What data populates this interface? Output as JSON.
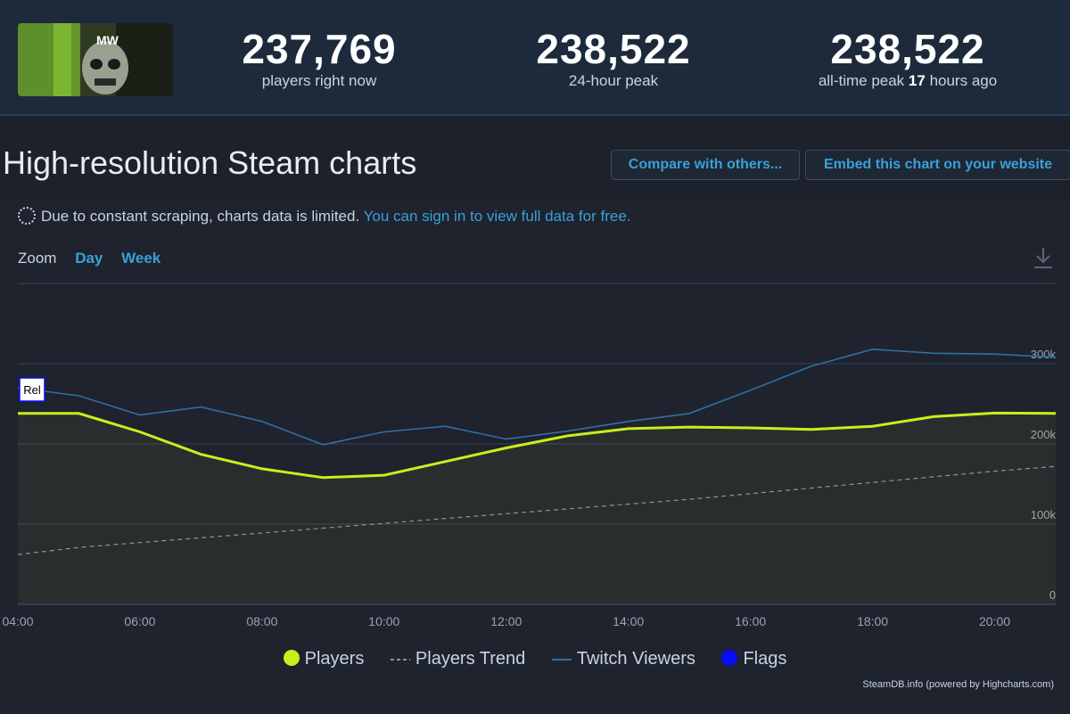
{
  "stats": [
    {
      "value": "237,769",
      "label": "players right now"
    },
    {
      "value": "238,522",
      "label": "24-hour peak"
    },
    {
      "value": "238,522",
      "label_pre": "all-time peak ",
      "label_bold": "17",
      "label_post": " hours ago"
    }
  ],
  "cover": {
    "art_text": "MW"
  },
  "page_title": "High-resolution Steam charts",
  "buttons": {
    "compare": "Compare with others...",
    "embed": "Embed this chart on your website"
  },
  "notice": {
    "text": "Due to constant scraping, charts data is limited.",
    "link": "You can sign in to view full data for free."
  },
  "zoom": {
    "label": "Zoom",
    "day": "Day",
    "week": "Week"
  },
  "icons": {
    "download": "download-icon",
    "spinner": "loading-icon"
  },
  "colors": {
    "players": "#c7ef1c",
    "trend": "#8a939e",
    "twitch": "#2f6fa3",
    "flags": "#0a0aff"
  },
  "legend": {
    "players": "Players",
    "trend": "Players Trend",
    "twitch": "Twitch Viewers",
    "flags": "Flags"
  },
  "credit": "SteamDB.info (powered by Highcharts.com)",
  "chart_data": {
    "type": "line",
    "x": [
      4,
      5,
      6,
      7,
      8,
      9,
      10,
      11,
      12,
      13,
      14,
      15,
      16,
      17,
      18,
      19,
      20,
      21
    ],
    "x_tick_labels": [
      "04:00",
      "06:00",
      "08:00",
      "10:00",
      "12:00",
      "14:00",
      "16:00",
      "18:00",
      "20:00"
    ],
    "x_ticks": [
      4,
      6,
      8,
      10,
      12,
      14,
      16,
      18,
      20
    ],
    "y_tick_labels": [
      "0",
      "100k",
      "200k",
      "300k"
    ],
    "y_ticks": [
      0,
      100000,
      200000,
      300000
    ],
    "ylim": [
      0,
      400000
    ],
    "xlim": [
      4,
      21
    ],
    "grid": true,
    "legend_position": "bottom",
    "flag_label": "Rel",
    "series": [
      {
        "name": "Players",
        "key": "players",
        "values": [
          238000,
          238000,
          215000,
          187000,
          169000,
          158000,
          161000,
          178000,
          195000,
          210000,
          219000,
          221000,
          220000,
          218000,
          222000,
          234000,
          238500,
          238000
        ]
      },
      {
        "name": "Players Trend",
        "key": "trend",
        "values": [
          62000,
          71000,
          77000,
          83000,
          89000,
          95000,
          101000,
          107000,
          113000,
          119000,
          125000,
          131000,
          138000,
          145000,
          152000,
          159000,
          166000,
          172000
        ]
      },
      {
        "name": "Twitch Viewers",
        "key": "twitch",
        "values": [
          270000,
          260000,
          236000,
          246000,
          228000,
          199000,
          215000,
          222000,
          206000,
          216000,
          228000,
          238000,
          267000,
          297000,
          318000,
          313000,
          312000,
          308000
        ]
      }
    ]
  }
}
